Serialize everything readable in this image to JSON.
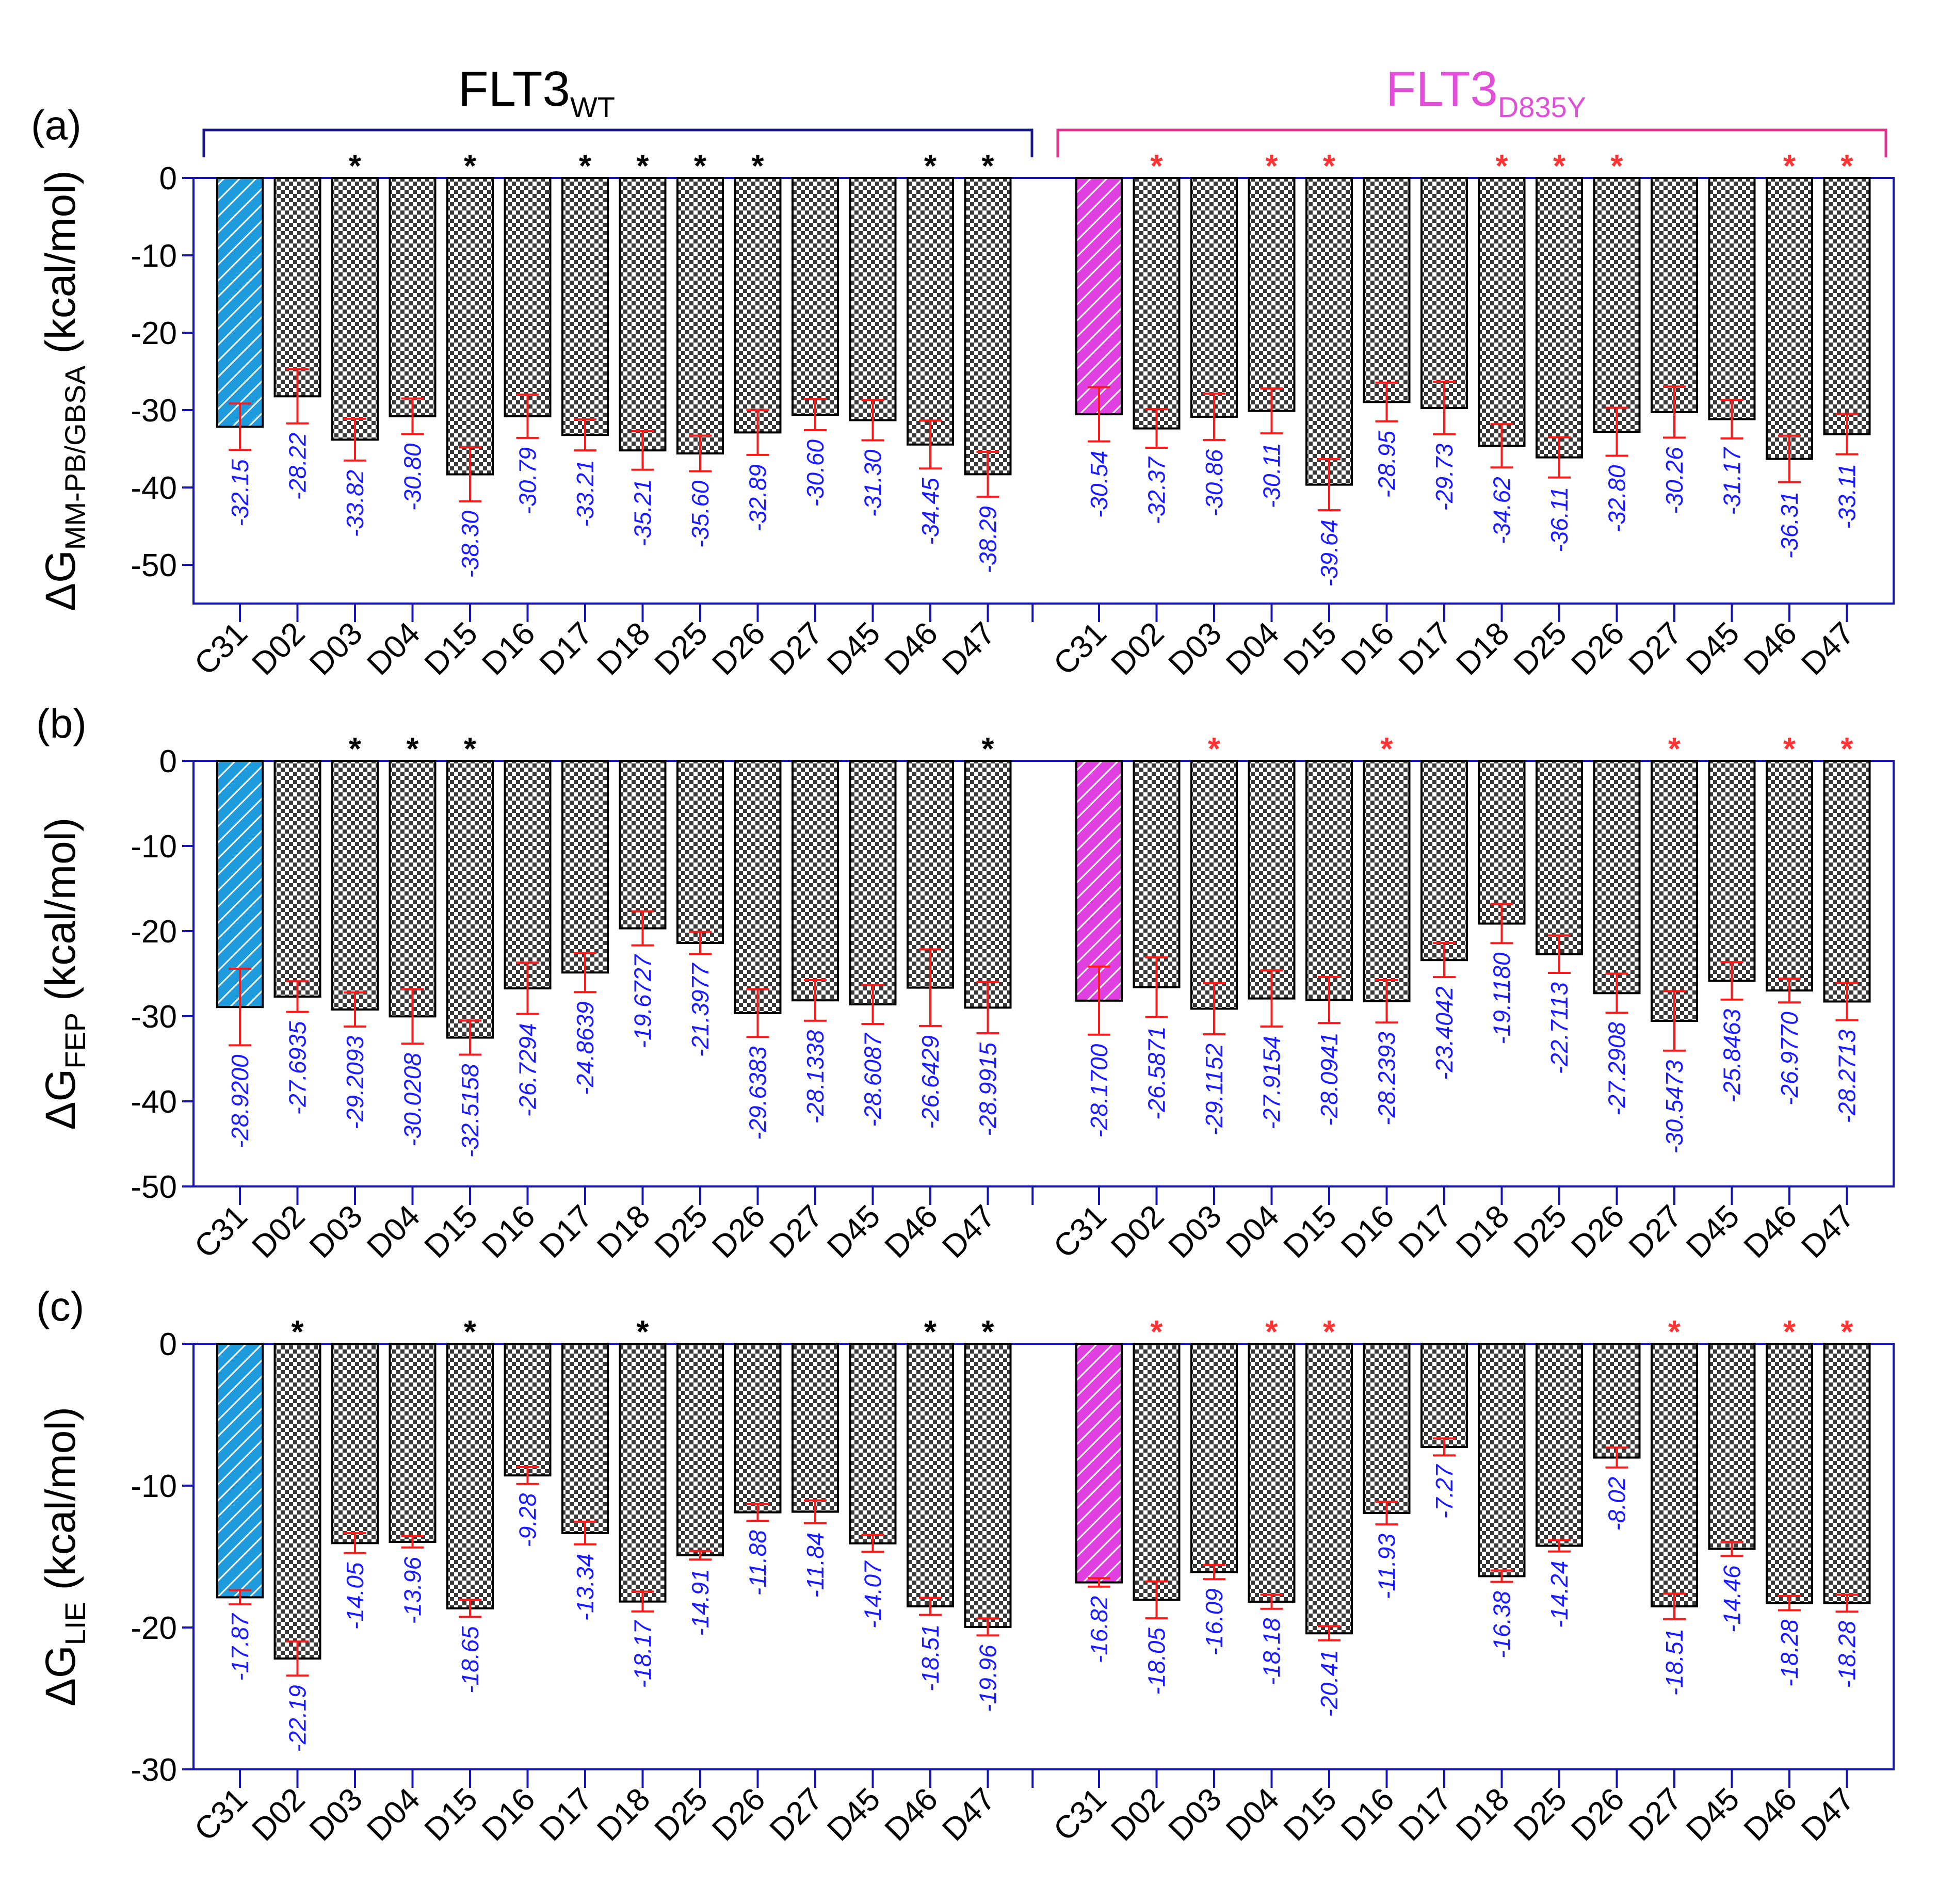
{
  "colors": {
    "axis": "#1414b4",
    "wt_ref": "#1e9bdc",
    "mut_ref": "#e040e0",
    "error_bar": "#ff1a1a",
    "value_label": "#1a1aff",
    "wt_star": "#000000",
    "mut_star": "#ff3333",
    "wt_bracket": "#1a1a8c",
    "mut_bracket": "#e0338c",
    "mut_title": "#e04fd8"
  },
  "groups": {
    "wt": {
      "title": "FLT3",
      "sub": "WT"
    },
    "mut": {
      "title": "FLT3",
      "sub": "D835Y"
    }
  },
  "chart_data": [
    {
      "type": "bar",
      "panel": "(a)",
      "ylabel": {
        "main": "ΔG",
        "sub": "MM-PB/GBSA",
        "unit": "(kcal/mol)"
      },
      "ylim": [
        -55,
        0
      ],
      "yticks": [
        0,
        -10,
        -20,
        -30,
        -40,
        -50
      ],
      "categories": [
        "C31",
        "D02",
        "D03",
        "D04",
        "D15",
        "D16",
        "D17",
        "D18",
        "D25",
        "D26",
        "D27",
        "D45",
        "D46",
        "D47"
      ],
      "series": [
        {
          "group": "wt",
          "values": [
            -32.15,
            -28.22,
            -33.82,
            -30.8,
            -38.3,
            -30.79,
            -33.21,
            -35.21,
            -35.6,
            -32.89,
            -30.6,
            -31.3,
            -34.45,
            -38.29
          ],
          "labels": [
            "-32.15",
            "-28.22",
            "-33.82",
            "-30.80",
            "-38.30",
            "-30.79",
            "-33.21",
            "-35.21",
            "-35.60",
            "-32.89",
            "-30.60",
            "-31.30",
            "-34.45",
            "-38.29"
          ],
          "errors": [
            3.0,
            3.5,
            2.7,
            2.3,
            3.5,
            2.8,
            2.0,
            2.5,
            2.3,
            2.9,
            2.0,
            2.6,
            3.1,
            2.9
          ],
          "stars": [
            false,
            false,
            true,
            false,
            true,
            false,
            true,
            true,
            true,
            true,
            false,
            false,
            true,
            true
          ]
        },
        {
          "group": "mut",
          "values": [
            -30.54,
            -32.37,
            -30.86,
            -30.11,
            -39.64,
            -28.95,
            -29.73,
            -34.62,
            -36.11,
            -32.8,
            -30.26,
            -31.17,
            -36.31,
            -33.11
          ],
          "labels": [
            "-30.54",
            "-32.37",
            "-30.86",
            "-30.11",
            "-39.64",
            "-28.95",
            "-29.73",
            "-34.62",
            "-36.11",
            "-32.80",
            "-30.26",
            "-31.17",
            "-36.31",
            "-33.11"
          ],
          "errors": [
            3.5,
            2.5,
            3.0,
            2.9,
            3.3,
            2.5,
            3.4,
            2.8,
            2.6,
            3.1,
            3.3,
            2.5,
            3.0,
            2.6
          ],
          "stars": [
            false,
            true,
            false,
            true,
            true,
            false,
            false,
            true,
            true,
            true,
            false,
            false,
            true,
            true
          ]
        }
      ]
    },
    {
      "type": "bar",
      "panel": "(b)",
      "ylabel": {
        "main": "ΔG",
        "sub": "FEP",
        "unit": "(kcal/mol)"
      },
      "ylim": [
        -50,
        0
      ],
      "yticks": [
        0,
        -10,
        -20,
        -30,
        -40,
        -50
      ],
      "categories": [
        "C31",
        "D02",
        "D03",
        "D04",
        "D15",
        "D16",
        "D17",
        "D18",
        "D25",
        "D26",
        "D27",
        "D45",
        "D46",
        "D47"
      ],
      "series": [
        {
          "group": "wt",
          "values": [
            -28.92,
            -27.6935,
            -29.2093,
            -30.0208,
            -32.5158,
            -26.7294,
            -24.8639,
            -19.6727,
            -21.3977,
            -29.6383,
            -28.1338,
            -28.6087,
            -26.6429,
            -28.9915
          ],
          "labels": [
            "-28.9200",
            "-27.6935",
            "-29.2093",
            "-30.0208",
            "-32.5158",
            "-26.7294",
            "-24.8639",
            "-19.6727",
            "-21.3977",
            "-29.6383",
            "-28.1338",
            "-28.6087",
            "-26.6429",
            "-28.9915"
          ],
          "errors": [
            4.5,
            1.8,
            2.0,
            3.2,
            2.0,
            3.0,
            2.3,
            2.0,
            1.3,
            2.8,
            2.4,
            2.3,
            4.5,
            3.0
          ],
          "stars": [
            false,
            false,
            true,
            true,
            true,
            false,
            false,
            false,
            false,
            false,
            false,
            false,
            false,
            true
          ]
        },
        {
          "group": "mut",
          "values": [
            -28.17,
            -26.5871,
            -29.1152,
            -27.9154,
            -28.0941,
            -28.2393,
            -23.4042,
            -19.118,
            -22.7113,
            -27.2908,
            -30.5473,
            -25.8463,
            -26.977,
            -28.2713
          ],
          "labels": [
            "-28.1700",
            "-26.5871",
            "-29.1152",
            "-27.9154",
            "-28.0941",
            "-28.2393",
            "-23.4042",
            "-19.1180",
            "-22.7113",
            "-27.2908",
            "-30.5473",
            "-25.8463",
            "-26.9770",
            "-28.2713"
          ],
          "errors": [
            4.0,
            3.5,
            3.0,
            3.3,
            2.7,
            2.5,
            2.0,
            2.3,
            2.2,
            2.3,
            3.5,
            2.2,
            1.4,
            2.2
          ],
          "stars": [
            false,
            false,
            true,
            false,
            false,
            true,
            false,
            false,
            false,
            false,
            true,
            false,
            true,
            true
          ]
        }
      ]
    },
    {
      "type": "bar",
      "panel": "(c)",
      "ylabel": {
        "main": "ΔG",
        "sub": "LIE",
        "unit": "(kcal/mol)"
      },
      "ylim": [
        -30,
        0
      ],
      "yticks": [
        0,
        -10,
        -20,
        -30
      ],
      "categories": [
        "C31",
        "D02",
        "D03",
        "D04",
        "D15",
        "D16",
        "D17",
        "D18",
        "D25",
        "D26",
        "D27",
        "D45",
        "D46",
        "D47"
      ],
      "series": [
        {
          "group": "wt",
          "values": [
            -17.87,
            -22.19,
            -14.05,
            -13.96,
            -18.65,
            -9.28,
            -13.34,
            -18.17,
            -14.91,
            -11.88,
            -11.84,
            -14.07,
            -18.51,
            -19.96
          ],
          "labels": [
            "-17.87",
            "-22.19",
            "-14.05",
            "-13.96",
            "-18.65",
            "-9.28",
            "-13.34",
            "-18.17",
            "-14.91",
            "-11.88",
            "-11.84",
            "-14.07",
            "-18.51",
            "-19.96"
          ],
          "errors": [
            0.5,
            1.2,
            0.7,
            0.4,
            0.6,
            0.6,
            0.8,
            0.7,
            0.3,
            0.6,
            0.8,
            0.6,
            0.6,
            0.6
          ],
          "stars": [
            false,
            true,
            false,
            false,
            true,
            false,
            false,
            true,
            false,
            false,
            false,
            false,
            true,
            true
          ]
        },
        {
          "group": "mut",
          "values": [
            -16.82,
            -18.05,
            -16.09,
            -18.18,
            -20.41,
            -11.93,
            -7.27,
            -16.38,
            -14.24,
            -8.02,
            -18.51,
            -14.46,
            -18.28,
            -18.28
          ],
          "labels": [
            "-16.82",
            "-18.05",
            "-16.09",
            "-18.18",
            "-20.41",
            "-11.93",
            "-7.27",
            "-16.38",
            "-14.24",
            "-8.02",
            "-18.51",
            "-14.46",
            "-18.28",
            "-18.28"
          ],
          "errors": [
            0.3,
            1.3,
            0.5,
            0.5,
            0.5,
            0.8,
            0.6,
            0.4,
            0.4,
            0.7,
            0.9,
            0.5,
            0.5,
            0.6
          ],
          "stars": [
            false,
            true,
            false,
            true,
            true,
            false,
            false,
            false,
            false,
            false,
            true,
            false,
            true,
            true
          ]
        }
      ]
    }
  ]
}
